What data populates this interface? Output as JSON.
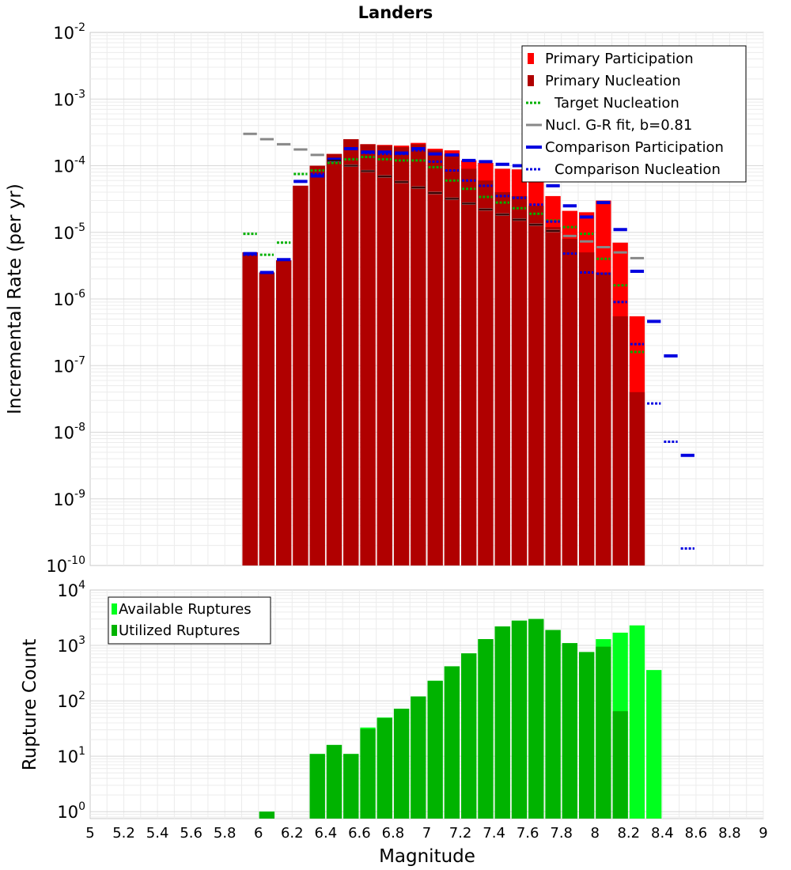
{
  "chart_data": [
    {
      "type": "bar",
      "title": "Landers",
      "xlabel": "Magnitude",
      "ylabel": "Incremental Rate (per yr)",
      "xlim": [
        5,
        9
      ],
      "ylim": [
        1e-10,
        0.01
      ],
      "yscale": "log",
      "y_tick_labels": [
        {
          "base": "10",
          "exp": "-2",
          "value": 0.01
        },
        {
          "base": "10",
          "exp": "-3",
          "value": 0.001
        },
        {
          "base": "10",
          "exp": "-4",
          "value": 0.0001
        },
        {
          "base": "10",
          "exp": "-5",
          "value": 1e-05
        },
        {
          "base": "10",
          "exp": "-6",
          "value": 1e-06
        },
        {
          "base": "10",
          "exp": "-7",
          "value": 1e-07
        },
        {
          "base": "10",
          "exp": "-8",
          "value": 1e-08
        },
        {
          "base": "10",
          "exp": "-9",
          "value": 1e-09
        },
        {
          "base": "10",
          "exp": "-10",
          "value": 1e-10
        }
      ],
      "grid": true,
      "legend_position": "top-right",
      "legend": [
        {
          "label": "Primary Participation",
          "color": "#ff0000",
          "style": "box"
        },
        {
          "label": "Primary Nucleation",
          "color": "#b00000",
          "style": "box"
        },
        {
          "label": "Target Nucleation",
          "color": "#00b000",
          "style": "dotted"
        },
        {
          "label": "Nucl. G-R fit, b=0.81",
          "color": "#888888",
          "style": "solid"
        },
        {
          "label": "Comparison Participation",
          "color": "#0000e0",
          "style": "solid-thick"
        },
        {
          "label": "Comparison Nucleation",
          "color": "#0000e0",
          "style": "dotted"
        }
      ],
      "bin_width": 0.1,
      "x": [
        5.95,
        6.05,
        6.15,
        6.25,
        6.35,
        6.45,
        6.55,
        6.65,
        6.75,
        6.85,
        6.95,
        7.05,
        7.15,
        7.25,
        7.35,
        7.45,
        7.55,
        7.65,
        7.75,
        7.85,
        7.95,
        8.05,
        8.15,
        8.25
      ],
      "series": [
        {
          "name": "Primary Participation",
          "color": "#ff0000",
          "values": [
            5e-06,
            2.5e-06,
            3.8e-06,
            5e-05,
            0.0001,
            0.00015,
            0.00025,
            0.00021,
            0.000205,
            0.0002,
            0.00022,
            0.00018,
            0.00017,
            0.00012,
            0.00011,
            9e-05,
            8.8e-05,
            6e-05,
            3.5e-05,
            2.1e-05,
            2e-05,
            3e-05,
            7e-06,
            5.5e-07
          ]
        },
        {
          "name": "Primary Nucleation",
          "color": "#b00000",
          "values": [
            5e-06,
            2.5e-06,
            3.8e-06,
            5e-05,
            0.0001,
            0.00015,
            0.00025,
            0.00021,
            0.0002,
            0.00019,
            0.00021,
            0.00017,
            0.00015,
            9e-05,
            6e-05,
            4e-05,
            3.5e-05,
            2.5e-05,
            1.2e-05,
            8e-06,
            5e-06,
            2.5e-06,
            5.5e-07,
            4e-08
          ]
        },
        {
          "name": "Target Nucleation",
          "color": "#00b000",
          "x": [
            5.95,
            6.05,
            6.15,
            6.25,
            6.35,
            6.45,
            6.55,
            6.65,
            6.75,
            6.85,
            6.95,
            7.05,
            7.15,
            7.25,
            7.35,
            7.45,
            7.55,
            7.65,
            7.75,
            7.85,
            7.95,
            8.05,
            8.15,
            8.25
          ],
          "values": [
            9.5e-06,
            4.6e-06,
            7e-06,
            7.5e-05,
            8.5e-05,
            0.00011,
            0.000125,
            0.000135,
            0.000125,
            0.00012,
            0.00012,
            9.5e-05,
            6e-05,
            4.5e-05,
            3.4e-05,
            2.8e-05,
            2.3e-05,
            1.9e-05,
            1.5e-05,
            1.2e-05,
            9.5e-06,
            4e-06,
            1.6e-06,
            1.6e-07
          ]
        },
        {
          "name": "Nucl. G-R fit, b=0.81",
          "color": "#888888",
          "x": [
            5.95,
            6.05,
            6.15,
            6.25,
            6.35,
            6.45,
            6.55,
            6.65,
            6.75,
            6.85,
            6.95,
            7.05,
            7.15,
            7.25,
            7.35,
            7.45,
            7.55,
            7.65,
            7.75,
            7.85,
            7.95,
            8.05,
            8.15,
            8.25
          ],
          "values": [
            0.0003,
            0.00025,
            0.00021,
            0.000175,
            0.000145,
            0.00012,
            0.0001,
            8.3e-05,
            6.9e-05,
            5.7e-05,
            4.7e-05,
            3.9e-05,
            3.2e-05,
            2.7e-05,
            2.2e-05,
            1.85e-05,
            1.55e-05,
            1.3e-05,
            1.05e-05,
            8.8e-06,
            7.3e-06,
            6e-06,
            5e-06,
            4.1e-06
          ]
        },
        {
          "name": "Comparison Participation",
          "color": "#0000e0",
          "x": [
            5.95,
            6.05,
            6.15,
            6.25,
            6.35,
            6.45,
            6.55,
            6.65,
            6.75,
            6.85,
            6.95,
            7.05,
            7.15,
            7.25,
            7.35,
            7.45,
            7.55,
            7.65,
            7.75,
            7.85,
            7.95,
            8.05,
            8.15,
            8.25,
            8.35,
            8.45,
            8.55
          ],
          "values": [
            4.8e-06,
            2.5e-06,
            3.9e-06,
            5.8e-05,
            7e-05,
            0.000125,
            0.00018,
            0.00016,
            0.00016,
            0.000155,
            0.00018,
            0.00015,
            0.000145,
            0.00012,
            0.000115,
            0.000105,
            0.0001,
            8e-05,
            5e-05,
            2.5e-05,
            1.7e-05,
            2.8e-05,
            1.1e-05,
            2.6e-06,
            4.6e-07,
            1.4e-07,
            4.5e-09
          ]
        },
        {
          "name": "Comparison Nucleation",
          "color": "#0000e0",
          "x": [
            5.95,
            6.05,
            6.15,
            6.25,
            6.35,
            6.45,
            6.55,
            6.65,
            6.75,
            6.85,
            6.95,
            7.05,
            7.15,
            7.25,
            7.35,
            7.45,
            7.55,
            7.65,
            7.75,
            7.85,
            7.95,
            8.05,
            8.15,
            8.25,
            8.35,
            8.45,
            8.55
          ],
          "values": [
            4.6e-06,
            2.5e-06,
            3.9e-06,
            5.8e-05,
            7.5e-05,
            0.00012,
            0.00018,
            0.000155,
            0.00015,
            0.00015,
            0.00017,
            0.000115,
            8.5e-05,
            6e-05,
            5e-05,
            3.5e-05,
            3.3e-05,
            2.6e-05,
            1.45e-05,
            4.8e-06,
            2.5e-06,
            2.4e-06,
            9e-07,
            2.1e-07,
            2.7e-08,
            7.2e-09,
            1.8e-10
          ]
        }
      ]
    },
    {
      "type": "bar",
      "xlabel": "Magnitude",
      "ylabel": "Rupture Count",
      "xlim": [
        5,
        9
      ],
      "ylim": [
        0.75,
        10000
      ],
      "yscale": "log",
      "y_tick_labels": [
        {
          "base": "10",
          "exp": "4",
          "value": 10000
        },
        {
          "base": "10",
          "exp": "3",
          "value": 1000
        },
        {
          "base": "10",
          "exp": "2",
          "value": 100
        },
        {
          "base": "10",
          "exp": "1",
          "value": 10
        },
        {
          "base": "10",
          "exp": "0",
          "value": 1
        }
      ],
      "x_tick_labels": [
        "5",
        "5.2",
        "5.4",
        "5.6",
        "5.8",
        "6",
        "6.2",
        "6.4",
        "6.6",
        "6.8",
        "7",
        "7.2",
        "7.4",
        "7.6",
        "7.8",
        "8",
        "8.2",
        "8.4",
        "8.6",
        "8.8",
        "9"
      ],
      "grid": true,
      "legend_position": "top-left",
      "legend": [
        {
          "label": "Available Ruptures",
          "color": "#00ff1e"
        },
        {
          "label": "Utilized Ruptures",
          "color": "#00b300"
        }
      ],
      "bin_width": 0.1,
      "x": [
        6.05,
        6.35,
        6.45,
        6.55,
        6.65,
        6.75,
        6.85,
        6.95,
        7.05,
        7.15,
        7.25,
        7.35,
        7.45,
        7.55,
        7.65,
        7.75,
        7.85,
        7.95,
        8.05,
        8.15,
        8.25,
        8.35
      ],
      "series": [
        {
          "name": "Available Ruptures",
          "color": "#00ff1e",
          "values": [
            1,
            11,
            16,
            11,
            33,
            50,
            72,
            120,
            230,
            420,
            720,
            1300,
            2200,
            2800,
            3000,
            1900,
            1100,
            760,
            1300,
            1700,
            2300,
            360
          ]
        },
        {
          "name": "Utilized Ruptures",
          "color": "#00b300",
          "values": [
            1,
            11,
            16,
            11,
            31,
            49,
            72,
            120,
            230,
            420,
            720,
            1300,
            2200,
            2800,
            3000,
            1900,
            1100,
            760,
            950,
            65,
            0,
            0
          ]
        }
      ]
    }
  ]
}
